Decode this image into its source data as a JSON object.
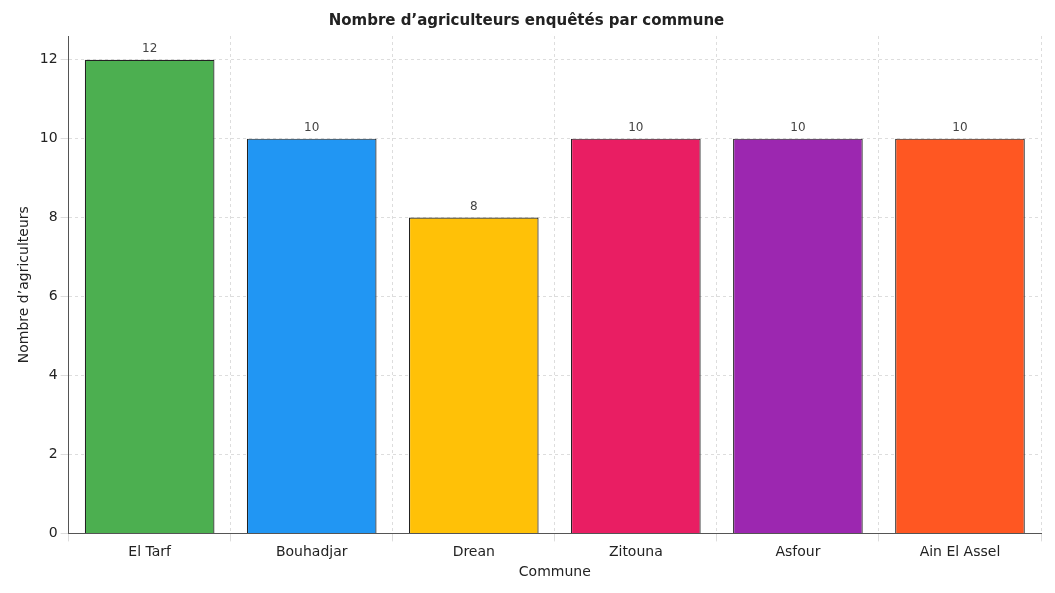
{
  "chart_data": {
    "type": "bar",
    "title": "Nombre d’agriculteurs enquêtés par commune",
    "xlabel": "Commune",
    "ylabel": "Nombre d’agriculteurs",
    "categories": [
      "El Tarf",
      "Bouhadjar",
      "Drean",
      "Zitouna",
      "Asfour",
      "Ain El Assel"
    ],
    "values": [
      12,
      10,
      8,
      10,
      10,
      10
    ],
    "colors": [
      "#4caf50",
      "#2196f3",
      "#ffc107",
      "#e91e63",
      "#9c27b0",
      "#ff5722"
    ],
    "ylim": [
      0,
      12.6
    ],
    "yticks": [
      0,
      2,
      4,
      6,
      8,
      10,
      12
    ],
    "grid": true,
    "data_labels": true
  }
}
